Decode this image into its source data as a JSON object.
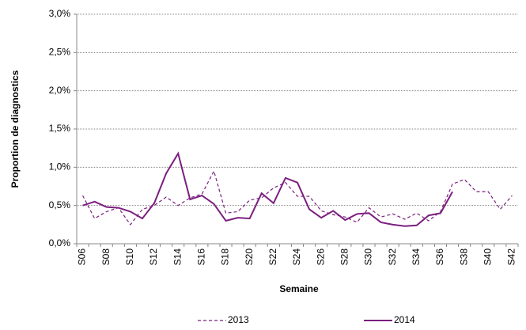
{
  "chart_data": {
    "type": "line",
    "x_label": "Semaine",
    "y_label": "Proportion de diagnostics",
    "categories": [
      "S06",
      null,
      "S08",
      null,
      "S10",
      null,
      "S12",
      null,
      "S14",
      null,
      "S16",
      null,
      "S18",
      null,
      "S20",
      null,
      "S22",
      null,
      "S24",
      null,
      "S26",
      null,
      "S28",
      null,
      "S30",
      null,
      "S32",
      null,
      "S34",
      null,
      "S36",
      null,
      "S38",
      null,
      "S40",
      null,
      "S42"
    ],
    "series": [
      {
        "name": "2013",
        "color": "#7b1f7e",
        "linestyle": "dashed",
        "values": [
          0.63,
          0.33,
          0.42,
          0.47,
          0.25,
          0.45,
          0.5,
          0.61,
          0.5,
          0.6,
          0.65,
          0.95,
          0.4,
          0.42,
          0.57,
          0.6,
          0.73,
          0.8,
          0.62,
          0.62,
          0.43,
          0.38,
          0.35,
          0.28,
          0.47,
          0.35,
          0.39,
          0.32,
          0.4,
          0.3,
          0.42,
          0.78,
          0.84,
          0.68,
          0.68,
          0.45,
          0.63
        ]
      },
      {
        "name": "2014",
        "color": "#7b1f7e",
        "linestyle": "solid",
        "values": [
          0.5,
          0.55,
          0.48,
          0.47,
          0.42,
          0.33,
          0.53,
          0.92,
          1.18,
          0.58,
          0.63,
          0.52,
          0.3,
          0.34,
          0.33,
          0.66,
          0.53,
          0.86,
          0.8,
          0.45,
          0.34,
          0.43,
          0.31,
          0.39,
          0.4,
          0.28,
          0.25,
          0.23,
          0.24,
          0.37,
          0.4,
          0.68,
          null,
          null,
          null,
          null,
          null
        ]
      }
    ],
    "ylim": [
      0,
      3
    ],
    "yticks": [
      {
        "value": 0,
        "label": "0,0%"
      },
      {
        "value": 0.5,
        "label": "0,5%"
      },
      {
        "value": 1,
        "label": "1,0%"
      },
      {
        "value": 1.5,
        "label": "1,5%"
      },
      {
        "value": 2,
        "label": "2,0%"
      },
      {
        "value": 2.5,
        "label": "2,5%"
      },
      {
        "value": 3,
        "label": "3,0%"
      }
    ],
    "grid": true,
    "legend": "bottom"
  }
}
